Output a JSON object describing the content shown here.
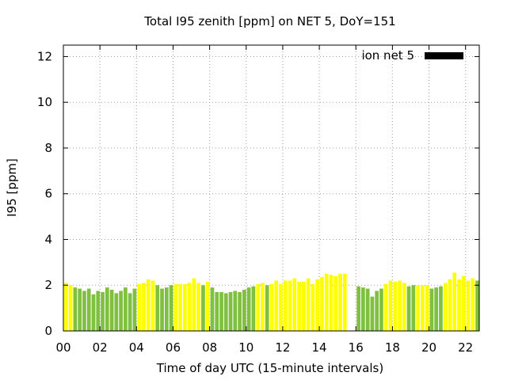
{
  "chart_data": {
    "type": "bar",
    "title": "Total I95 zenith [ppm] on NET 5, DoY=151",
    "xlabel": "Time of day UTC (15-minute intervals)",
    "ylabel": "I95 [ppm]",
    "x_range": [
      0,
      22.75
    ],
    "x_ticks": [
      "00",
      "02",
      "04",
      "06",
      "08",
      "10",
      "12",
      "14",
      "16",
      "18",
      "20",
      "22"
    ],
    "x_tick_values": [
      0,
      2,
      4,
      6,
      8,
      10,
      12,
      14,
      16,
      18,
      20,
      22
    ],
    "ylim": [
      0,
      12.5
    ],
    "y_ticks": [
      "0",
      "2",
      "4",
      "6",
      "8",
      "10",
      "12"
    ],
    "y_tick_values": [
      0,
      2,
      4,
      6,
      8,
      10,
      12
    ],
    "grid": true,
    "legend": {
      "label": "ion net 5",
      "color": "#000000",
      "placement": "top-right"
    },
    "colors": {
      "green": "#80c040",
      "yellow": "#ffff00"
    },
    "bars": [
      {
        "x": 0.0,
        "value": 2.1,
        "color": "yellow"
      },
      {
        "x": 0.25,
        "value": 2.0,
        "color": "yellow"
      },
      {
        "x": 0.5,
        "value": 1.9,
        "color": "green"
      },
      {
        "x": 0.75,
        "value": 1.85,
        "color": "green"
      },
      {
        "x": 1.0,
        "value": 1.75,
        "color": "green"
      },
      {
        "x": 1.25,
        "value": 1.85,
        "color": "green"
      },
      {
        "x": 1.5,
        "value": 1.6,
        "color": "green"
      },
      {
        "x": 1.75,
        "value": 1.75,
        "color": "green"
      },
      {
        "x": 2.0,
        "value": 1.7,
        "color": "green"
      },
      {
        "x": 2.25,
        "value": 1.9,
        "color": "green"
      },
      {
        "x": 2.5,
        "value": 1.8,
        "color": "green"
      },
      {
        "x": 2.75,
        "value": 1.65,
        "color": "green"
      },
      {
        "x": 3.0,
        "value": 1.75,
        "color": "green"
      },
      {
        "x": 3.25,
        "value": 1.9,
        "color": "green"
      },
      {
        "x": 3.5,
        "value": 1.65,
        "color": "green"
      },
      {
        "x": 3.75,
        "value": 1.85,
        "color": "green"
      },
      {
        "x": 4.0,
        "value": 2.05,
        "color": "yellow"
      },
      {
        "x": 4.25,
        "value": 2.1,
        "color": "yellow"
      },
      {
        "x": 4.5,
        "value": 2.25,
        "color": "yellow"
      },
      {
        "x": 4.75,
        "value": 2.2,
        "color": "yellow"
      },
      {
        "x": 5.0,
        "value": 2.0,
        "color": "green"
      },
      {
        "x": 5.25,
        "value": 1.85,
        "color": "green"
      },
      {
        "x": 5.5,
        "value": 1.9,
        "color": "green"
      },
      {
        "x": 5.75,
        "value": 2.0,
        "color": "green"
      },
      {
        "x": 6.0,
        "value": 2.05,
        "color": "yellow"
      },
      {
        "x": 6.25,
        "value": 2.05,
        "color": "yellow"
      },
      {
        "x": 6.5,
        "value": 2.05,
        "color": "yellow"
      },
      {
        "x": 6.75,
        "value": 2.1,
        "color": "yellow"
      },
      {
        "x": 7.0,
        "value": 2.3,
        "color": "yellow"
      },
      {
        "x": 7.25,
        "value": 2.1,
        "color": "yellow"
      },
      {
        "x": 7.5,
        "value": 2.0,
        "color": "green"
      },
      {
        "x": 7.75,
        "value": 2.15,
        "color": "yellow"
      },
      {
        "x": 8.0,
        "value": 1.9,
        "color": "green"
      },
      {
        "x": 8.25,
        "value": 1.7,
        "color": "green"
      },
      {
        "x": 8.5,
        "value": 1.7,
        "color": "green"
      },
      {
        "x": 8.75,
        "value": 1.65,
        "color": "green"
      },
      {
        "x": 9.0,
        "value": 1.7,
        "color": "green"
      },
      {
        "x": 9.25,
        "value": 1.75,
        "color": "green"
      },
      {
        "x": 9.5,
        "value": 1.7,
        "color": "green"
      },
      {
        "x": 9.75,
        "value": 1.8,
        "color": "green"
      },
      {
        "x": 10.0,
        "value": 1.9,
        "color": "green"
      },
      {
        "x": 10.25,
        "value": 1.95,
        "color": "green"
      },
      {
        "x": 10.5,
        "value": 2.05,
        "color": "yellow"
      },
      {
        "x": 10.75,
        "value": 2.1,
        "color": "yellow"
      },
      {
        "x": 11.0,
        "value": 2.0,
        "color": "green"
      },
      {
        "x": 11.25,
        "value": 2.05,
        "color": "yellow"
      },
      {
        "x": 11.5,
        "value": 2.2,
        "color": "yellow"
      },
      {
        "x": 11.75,
        "value": 2.05,
        "color": "yellow"
      },
      {
        "x": 12.0,
        "value": 2.2,
        "color": "yellow"
      },
      {
        "x": 12.25,
        "value": 2.2,
        "color": "yellow"
      },
      {
        "x": 12.5,
        "value": 2.3,
        "color": "yellow"
      },
      {
        "x": 12.75,
        "value": 2.15,
        "color": "yellow"
      },
      {
        "x": 13.0,
        "value": 2.15,
        "color": "yellow"
      },
      {
        "x": 13.25,
        "value": 2.3,
        "color": "yellow"
      },
      {
        "x": 13.5,
        "value": 2.05,
        "color": "yellow"
      },
      {
        "x": 13.75,
        "value": 2.25,
        "color": "yellow"
      },
      {
        "x": 14.0,
        "value": 2.35,
        "color": "yellow"
      },
      {
        "x": 14.25,
        "value": 2.5,
        "color": "yellow"
      },
      {
        "x": 14.5,
        "value": 2.45,
        "color": "yellow"
      },
      {
        "x": 14.75,
        "value": 2.4,
        "color": "yellow"
      },
      {
        "x": 15.0,
        "value": 2.5,
        "color": "yellow"
      },
      {
        "x": 15.25,
        "value": 2.5,
        "color": "yellow"
      },
      {
        "x": 16.0,
        "value": 1.95,
        "color": "green"
      },
      {
        "x": 16.25,
        "value": 1.9,
        "color": "green"
      },
      {
        "x": 16.5,
        "value": 1.85,
        "color": "green"
      },
      {
        "x": 16.75,
        "value": 1.5,
        "color": "green"
      },
      {
        "x": 17.0,
        "value": 1.75,
        "color": "green"
      },
      {
        "x": 17.25,
        "value": 1.85,
        "color": "green"
      },
      {
        "x": 17.5,
        "value": 2.05,
        "color": "yellow"
      },
      {
        "x": 17.75,
        "value": 2.2,
        "color": "yellow"
      },
      {
        "x": 18.0,
        "value": 2.15,
        "color": "yellow"
      },
      {
        "x": 18.25,
        "value": 2.2,
        "color": "yellow"
      },
      {
        "x": 18.5,
        "value": 2.1,
        "color": "yellow"
      },
      {
        "x": 18.75,
        "value": 1.95,
        "color": "green"
      },
      {
        "x": 19.0,
        "value": 2.0,
        "color": "green"
      },
      {
        "x": 19.25,
        "value": 2.0,
        "color": "yellow"
      },
      {
        "x": 19.5,
        "value": 2.0,
        "color": "yellow"
      },
      {
        "x": 19.75,
        "value": 2.0,
        "color": "yellow"
      },
      {
        "x": 20.0,
        "value": 1.85,
        "color": "green"
      },
      {
        "x": 20.25,
        "value": 1.9,
        "color": "green"
      },
      {
        "x": 20.5,
        "value": 1.95,
        "color": "green"
      },
      {
        "x": 20.75,
        "value": 2.1,
        "color": "yellow"
      },
      {
        "x": 21.0,
        "value": 2.25,
        "color": "yellow"
      },
      {
        "x": 21.25,
        "value": 2.55,
        "color": "yellow"
      },
      {
        "x": 21.5,
        "value": 2.25,
        "color": "yellow"
      },
      {
        "x": 21.75,
        "value": 2.4,
        "color": "yellow"
      },
      {
        "x": 22.0,
        "value": 2.2,
        "color": "yellow"
      },
      {
        "x": 22.25,
        "value": 2.3,
        "color": "yellow"
      },
      {
        "x": 22.5,
        "value": 2.2,
        "color": "green"
      }
    ]
  }
}
